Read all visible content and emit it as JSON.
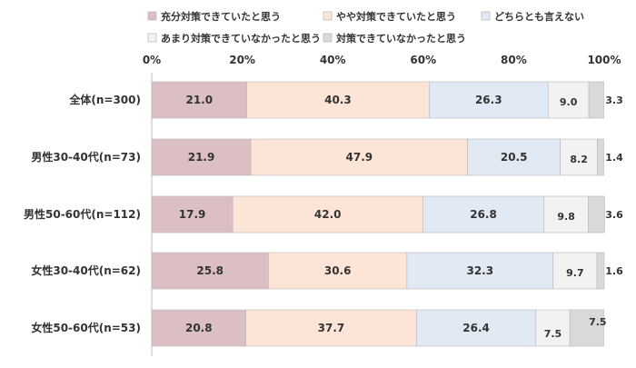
{
  "chart_data": {
    "type": "bar",
    "orientation": "horizontal",
    "stacked": true,
    "title": "",
    "xlabel": "",
    "ylabel": "",
    "xlim": [
      0,
      100
    ],
    "x_ticks": [
      "0%",
      "20%",
      "40%",
      "60%",
      "80%",
      "100%"
    ],
    "legend_placement": "top",
    "grid": false,
    "categories": [
      "全体(n=300)",
      "男性30-40代(n=73)",
      "男性50-60代(n=112)",
      "女性30-40代(n=62)",
      "女性50-60代(n=53)"
    ],
    "series": [
      {
        "name": "充分対策できていたと思う",
        "color": "#dcbfc2",
        "values": [
          21.0,
          21.9,
          17.9,
          25.8,
          20.8
        ],
        "labels": [
          "21.0",
          "21.9",
          "17.9",
          "25.8",
          "20.8"
        ]
      },
      {
        "name": "やや対策できていたと思う",
        "color": "#fce5d6",
        "values": [
          40.3,
          47.9,
          42.0,
          30.6,
          37.7
        ],
        "labels": [
          "40.3",
          "47.9",
          "42.0",
          "30.6",
          "37.7"
        ]
      },
      {
        "name": "どちらとも言えない",
        "color": "#e1e9f4",
        "values": [
          26.3,
          20.5,
          26.8,
          32.3,
          26.4
        ],
        "labels": [
          "26.3",
          "20.5",
          "26.8",
          "32.3",
          "26.4"
        ]
      },
      {
        "name": "あまり対策できていなかったと思う",
        "color": "#f2f2f2",
        "values": [
          9.0,
          8.2,
          9.8,
          9.7,
          7.5
        ],
        "labels": [
          "9.0",
          "8.2",
          "9.8",
          "9.7",
          "7.5"
        ]
      },
      {
        "name": "対策できていなかったと思う",
        "color": "#d9d9d9",
        "values": [
          3.3,
          1.4,
          3.6,
          1.6,
          7.5
        ],
        "labels": [
          "3.3",
          "1.4",
          "3.6",
          "1.6",
          "7.5"
        ]
      }
    ]
  }
}
